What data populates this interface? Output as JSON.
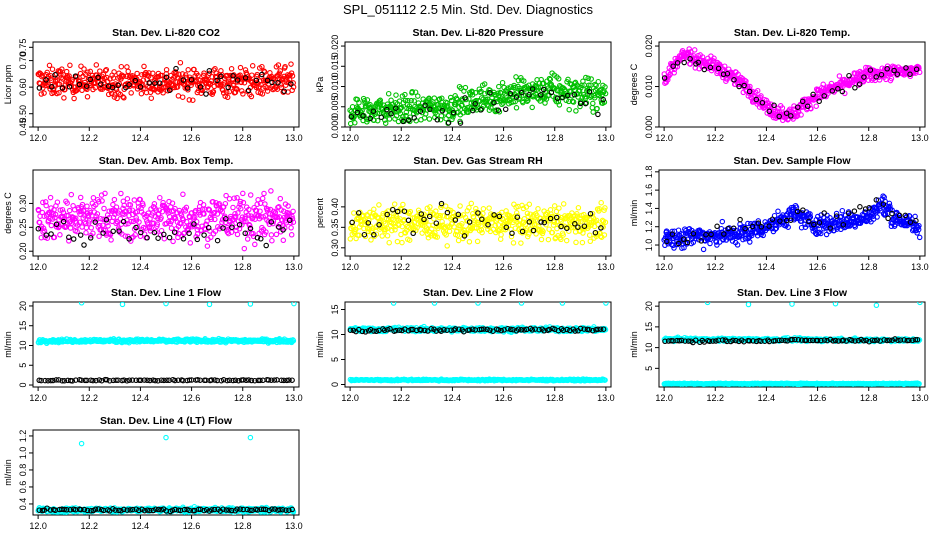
{
  "page": {
    "title": "SPL_051112  2.5 Min. Std. Dev. Diagnostics"
  },
  "chart_data": [
    {
      "type": "scatter",
      "title": "Stan. Dev. Li-820 CO2",
      "ylabel": "Licor ppm",
      "xlim": [
        11.98,
        13.02
      ],
      "ylim": [
        0.45,
        0.77
      ],
      "xticks": [
        "12.0",
        "12.2",
        "12.4",
        "12.6",
        "12.8",
        "13.0"
      ],
      "yticks": [
        "0.45",
        "0.50",
        "0.60",
        "0.70",
        "0.75"
      ],
      "series": [
        {
          "color": "#ff0000",
          "kind": "band",
          "n": 520,
          "base": [
            [
              12.0,
              0.62
            ],
            [
              13.0,
              0.62
            ]
          ],
          "spread": 0.045,
          "lo": 0.47,
          "hi": 0.73
        },
        {
          "color": "#000000",
          "kind": "band",
          "n": 45,
          "base": [
            [
              12.0,
              0.61
            ],
            [
              13.0,
              0.61
            ]
          ],
          "spread": 0.04,
          "lo": 0.46,
          "hi": 0.75
        }
      ]
    },
    {
      "type": "scatter",
      "title": "Stan. Dev. Li-820 Pressure",
      "ylabel": "kPa",
      "xlim": [
        11.98,
        13.02
      ],
      "ylim": [
        0.0,
        0.021
      ],
      "xticks": [
        "12.0",
        "12.2",
        "12.4",
        "12.6",
        "12.8",
        "13.0"
      ],
      "yticks": [
        "0.000",
        "0.005",
        "0.010",
        "0.015",
        "0.020"
      ],
      "series": [
        {
          "color": "#00c000",
          "kind": "band",
          "n": 520,
          "base": [
            [
              12.0,
              0.004
            ],
            [
              12.4,
              0.005
            ],
            [
              12.6,
              0.008
            ],
            [
              12.8,
              0.009
            ],
            [
              13.0,
              0.008
            ]
          ],
          "spread": 0.003,
          "lo": 0.0005,
          "hi": 0.02
        },
        {
          "color": "#000000",
          "kind": "band",
          "n": 45,
          "base": [
            [
              12.0,
              0.003
            ],
            [
              12.4,
              0.004
            ],
            [
              12.6,
              0.008
            ],
            [
              13.0,
              0.007
            ]
          ],
          "spread": 0.003,
          "lo": 0.0005,
          "hi": 0.016
        }
      ]
    },
    {
      "type": "scatter",
      "title": "Stan. Dev. Li-820 Temp.",
      "ylabel": "degrees C",
      "xlim": [
        11.98,
        13.02
      ],
      "ylim": [
        0.0,
        0.021
      ],
      "xticks": [
        "12.0",
        "12.2",
        "12.4",
        "12.6",
        "12.8",
        "13.0"
      ],
      "yticks": [
        "0.000",
        "0.010",
        "0.020"
      ],
      "series": [
        {
          "color": "#ff00ff",
          "kind": "band",
          "n": 520,
          "base": [
            [
              12.0,
              0.012
            ],
            [
              12.08,
              0.018
            ],
            [
              12.2,
              0.015
            ],
            [
              12.3,
              0.011
            ],
            [
              12.42,
              0.004
            ],
            [
              12.5,
              0.003
            ],
            [
              12.6,
              0.008
            ],
            [
              12.8,
              0.013
            ],
            [
              13.0,
              0.014
            ]
          ],
          "spread": 0.0015,
          "lo": 0.0,
          "hi": 0.02
        },
        {
          "color": "#000000",
          "kind": "band",
          "n": 45,
          "base": [
            [
              12.0,
              0.012
            ],
            [
              12.08,
              0.017
            ],
            [
              12.2,
              0.015
            ],
            [
              12.3,
              0.011
            ],
            [
              12.42,
              0.004
            ],
            [
              12.5,
              0.003
            ],
            [
              12.6,
              0.008
            ],
            [
              12.8,
              0.013
            ],
            [
              13.0,
              0.015
            ]
          ],
          "spread": 0.0015,
          "lo": 0.0,
          "hi": 0.02
        }
      ]
    },
    {
      "type": "scatter",
      "title": "Stan. Dev. Amb. Box Temp.",
      "ylabel": "degrees C",
      "xlim": [
        11.98,
        13.02
      ],
      "ylim": [
        0.19,
        0.37
      ],
      "xticks": [
        "12.0",
        "12.2",
        "12.4",
        "12.6",
        "12.8",
        "13.0"
      ],
      "yticks": [
        "0.20",
        "0.25",
        "0.30"
      ],
      "series": [
        {
          "color": "#ff00ff",
          "kind": "band",
          "n": 520,
          "base": [
            [
              12.0,
              0.27
            ],
            [
              13.0,
              0.27
            ]
          ],
          "spread": 0.04,
          "lo": 0.2,
          "hi": 0.36
        },
        {
          "color": "#000000",
          "kind": "band",
          "n": 45,
          "base": [
            [
              12.0,
              0.24
            ],
            [
              13.0,
              0.24
            ]
          ],
          "spread": 0.025,
          "lo": 0.2,
          "hi": 0.32
        }
      ]
    },
    {
      "type": "scatter",
      "title": "Stan. Dev. Gas Stream RH",
      "ylabel": "percent",
      "xlim": [
        11.98,
        13.02
      ],
      "ylim": [
        0.28,
        0.49
      ],
      "xticks": [
        "12.0",
        "12.2",
        "12.4",
        "12.6",
        "12.8",
        "13.0"
      ],
      "yticks": [
        "0.30",
        "0.35",
        "0.40"
      ],
      "series": [
        {
          "color": "#ffff00",
          "kind": "band",
          "n": 520,
          "base": [
            [
              12.0,
              0.36
            ],
            [
              13.0,
              0.36
            ]
          ],
          "spread": 0.035,
          "lo": 0.29,
          "hi": 0.47
        },
        {
          "color": "#000000",
          "kind": "band",
          "n": 45,
          "base": [
            [
              12.0,
              0.36
            ],
            [
              13.0,
              0.36
            ]
          ],
          "spread": 0.03,
          "lo": 0.3,
          "hi": 0.47
        }
      ]
    },
    {
      "type": "scatter",
      "title": "Stan. Dev. Sample Flow",
      "ylabel": "ml/min",
      "xlim": [
        11.98,
        13.02
      ],
      "ylim": [
        0.88,
        1.82
      ],
      "xticks": [
        "12.0",
        "12.2",
        "12.4",
        "12.6",
        "12.8",
        "13.0"
      ],
      "yticks": [
        "1.0",
        "1.2",
        "1.4",
        "1.6",
        "1.8"
      ],
      "series": [
        {
          "color": "#0000ff",
          "kind": "band",
          "n": 520,
          "base": [
            [
              12.0,
              1.08
            ],
            [
              12.3,
              1.12
            ],
            [
              12.45,
              1.25
            ],
            [
              12.5,
              1.35
            ],
            [
              12.6,
              1.22
            ],
            [
              12.8,
              1.3
            ],
            [
              12.85,
              1.45
            ],
            [
              12.9,
              1.3
            ],
            [
              13.0,
              1.18
            ]
          ],
          "spread": 0.09,
          "lo": 0.95,
          "hi": 1.78
        },
        {
          "color": "#000000",
          "kind": "band",
          "n": 45,
          "base": [
            [
              12.0,
              1.08
            ],
            [
              12.45,
              1.25
            ],
            [
              12.5,
              1.35
            ],
            [
              12.6,
              1.22
            ],
            [
              12.85,
              1.45
            ],
            [
              13.0,
              1.18
            ]
          ],
          "spread": 0.08,
          "lo": 0.95,
          "hi": 1.6
        }
      ]
    },
    {
      "type": "scatter",
      "title": "Stan. Dev. Line 1 Flow",
      "ylabel": "ml/min",
      "xlim": [
        11.98,
        13.02
      ],
      "ylim": [
        -0.5,
        21
      ],
      "xticks": [
        "12.0",
        "12.2",
        "12.4",
        "12.6",
        "12.8",
        "13.0"
      ],
      "yticks": [
        "0",
        "5",
        "10",
        "15",
        "20"
      ],
      "series": [
        {
          "color": "#00ffff",
          "kind": "band",
          "n": 400,
          "base": [
            [
              12.0,
              11.2
            ],
            [
              13.0,
              11.2
            ]
          ],
          "spread": 0.35,
          "lo": 10.0,
          "hi": 12.5
        },
        {
          "color": "#00ffff",
          "kind": "points",
          "x": [
            12.17,
            12.33,
            12.5,
            12.67,
            12.83,
            13.0
          ],
          "y": [
            20.8,
            20.4,
            20.6,
            20.4,
            20.5,
            20.6
          ]
        },
        {
          "color": "#000000",
          "kind": "band",
          "n": 90,
          "base": [
            [
              12.0,
              1.2
            ],
            [
              13.0,
              1.2
            ]
          ],
          "spread": 0.12,
          "lo": 0.8,
          "hi": 1.6
        }
      ]
    },
    {
      "type": "scatter",
      "title": "Stan. Dev. Line 2 Flow",
      "ylabel": "ml/min",
      "xlim": [
        11.98,
        13.02
      ],
      "ylim": [
        -0.5,
        16.5
      ],
      "xticks": [
        "12.0",
        "12.2",
        "12.4",
        "12.6",
        "12.8",
        "13.0"
      ],
      "yticks": [
        "0",
        "5",
        "10",
        "15"
      ],
      "series": [
        {
          "color": "#00ffff",
          "kind": "band",
          "n": 400,
          "base": [
            [
              12.0,
              11.0
            ],
            [
              13.0,
              11.0
            ]
          ],
          "spread": 0.35,
          "lo": 10.0,
          "hi": 12.5
        },
        {
          "color": "#00ffff",
          "kind": "band",
          "n": 300,
          "base": [
            [
              12.0,
              0.9
            ],
            [
              13.0,
              0.9
            ]
          ],
          "spread": 0.12,
          "lo": 0.5,
          "hi": 1.3
        },
        {
          "color": "#00ffff",
          "kind": "points",
          "x": [
            12.17,
            12.33,
            12.5,
            12.67,
            12.83,
            13.0
          ],
          "y": [
            16.3,
            16.3,
            16.3,
            16.3,
            16.3,
            16.3
          ]
        },
        {
          "color": "#000000",
          "kind": "band",
          "n": 90,
          "base": [
            [
              12.0,
              10.8
            ],
            [
              13.0,
              11.0
            ]
          ],
          "spread": 0.25,
          "lo": 10.0,
          "hi": 11.8
        }
      ]
    },
    {
      "type": "scatter",
      "title": "Stan. Dev. Line 3 Flow",
      "ylabel": "ml/min",
      "xlim": [
        11.98,
        13.02
      ],
      "ylim": [
        0.5,
        21
      ],
      "xticks": [
        "12.0",
        "12.2",
        "12.4",
        "12.6",
        "12.8",
        "13.0"
      ],
      "yticks": [
        "5",
        "10",
        "15",
        "20"
      ],
      "series": [
        {
          "color": "#00ffff",
          "kind": "band",
          "n": 400,
          "base": [
            [
              12.0,
              12.0
            ],
            [
              13.0,
              11.8
            ]
          ],
          "spread": 0.3,
          "lo": 11.0,
          "hi": 13.0
        },
        {
          "color": "#00ffff",
          "kind": "band",
          "n": 300,
          "base": [
            [
              12.0,
              1.3
            ],
            [
              13.0,
              1.3
            ]
          ],
          "spread": 0.1,
          "lo": 1.0,
          "hi": 1.6
        },
        {
          "color": "#00ffff",
          "kind": "points",
          "x": [
            12.17,
            12.33,
            12.5,
            12.67,
            12.83,
            13.0
          ],
          "y": [
            20.9,
            20.4,
            20.5,
            20.6,
            20.2,
            20.9
          ]
        },
        {
          "color": "#000000",
          "kind": "band",
          "n": 90,
          "base": [
            [
              12.0,
              11.6
            ],
            [
              13.0,
              11.8
            ]
          ],
          "spread": 0.25,
          "lo": 10.8,
          "hi": 12.5
        }
      ]
    },
    {
      "type": "scatter",
      "title": "Stan. Dev. Line 4 (LT) Flow",
      "ylabel": "ml/min",
      "xlim": [
        11.98,
        13.02
      ],
      "ylim": [
        0.27,
        1.27
      ],
      "xticks": [
        "12.0",
        "12.2",
        "12.4",
        "12.6",
        "12.8",
        "13.0"
      ],
      "yticks": [
        "0.4",
        "0.6",
        "0.8",
        "1.0",
        "1.2"
      ],
      "series": [
        {
          "color": "#00ffff",
          "kind": "band",
          "n": 500,
          "base": [
            [
              12.0,
              0.33
            ],
            [
              13.0,
              0.33
            ]
          ],
          "spread": 0.02,
          "lo": 0.29,
          "hi": 0.38
        },
        {
          "color": "#00ffff",
          "kind": "points",
          "x": [
            12.17,
            12.5,
            12.83
          ],
          "y": [
            1.11,
            1.18,
            1.18
          ]
        },
        {
          "color": "#000000",
          "kind": "band",
          "n": 90,
          "base": [
            [
              12.0,
              0.33
            ],
            [
              13.0,
              0.33
            ]
          ],
          "spread": 0.012,
          "lo": 0.3,
          "hi": 0.36
        }
      ]
    }
  ]
}
